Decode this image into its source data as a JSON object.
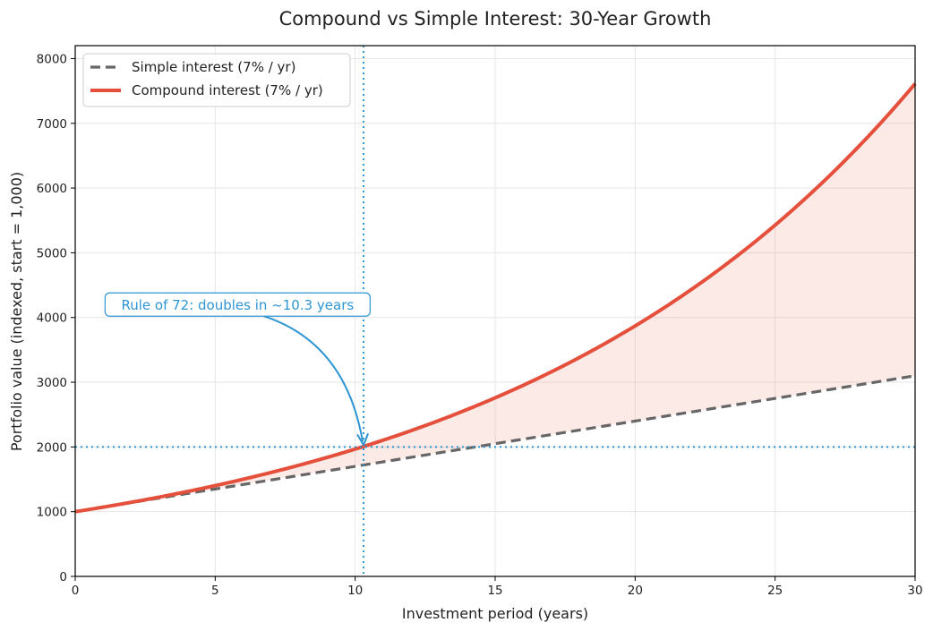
{
  "chart_data": {
    "type": "line",
    "title": "Compound vs Simple Interest: 30-Year Growth",
    "xlabel": "Investment period (years)",
    "ylabel": "Portfolio value (indexed, start = 1,000)",
    "xlim": [
      0,
      30
    ],
    "ylim": [
      0,
      8200
    ],
    "xticks": [
      0,
      5,
      10,
      15,
      20,
      25,
      30
    ],
    "yticks": [
      0,
      1000,
      2000,
      3000,
      4000,
      5000,
      6000,
      7000,
      8000
    ],
    "grid": true,
    "legend_position": "top-left",
    "principal": 1000,
    "rate": 0.07,
    "x": [
      0,
      1,
      2,
      3,
      4,
      5,
      6,
      7,
      8,
      9,
      10,
      11,
      12,
      13,
      14,
      15,
      16,
      17,
      18,
      19,
      20,
      21,
      22,
      23,
      24,
      25,
      26,
      27,
      28,
      29,
      30
    ],
    "series": [
      {
        "name": "Simple interest (7% / yr)",
        "style": "dashed",
        "color": "#666666",
        "values": [
          1000,
          1070,
          1140,
          1210,
          1280,
          1350,
          1420,
          1490,
          1560,
          1630,
          1700,
          1770,
          1840,
          1910,
          1980,
          2050,
          2120,
          2190,
          2260,
          2330,
          2400,
          2470,
          2540,
          2610,
          2680,
          2750,
          2820,
          2890,
          2960,
          3030,
          3100
        ]
      },
      {
        "name": "Compound interest (7% / yr)",
        "style": "solid",
        "color": "#e4503b",
        "values": [
          1000,
          1070,
          1145,
          1225,
          1311,
          1403,
          1501,
          1606,
          1718,
          1838,
          1967,
          2105,
          2252,
          2410,
          2579,
          2759,
          2952,
          3159,
          3380,
          3617,
          3870,
          4141,
          4430,
          4741,
          5072,
          5427,
          5807,
          6214,
          6649,
          7114,
          7612
        ]
      }
    ],
    "fill_between": {
      "series": [
        0,
        1
      ],
      "color": "#e4503b",
      "opacity": 0.12
    },
    "reference_lines": {
      "vertical_x": 10.3,
      "horizontal_y": 2000,
      "color": "#2e95d3"
    },
    "annotation": {
      "text": "Rule of 72: doubles in ~10.3 years",
      "target_x": 10.3,
      "target_y": 2000,
      "text_x": 5.8,
      "text_y": 4200,
      "color": "#2e95d3"
    }
  }
}
